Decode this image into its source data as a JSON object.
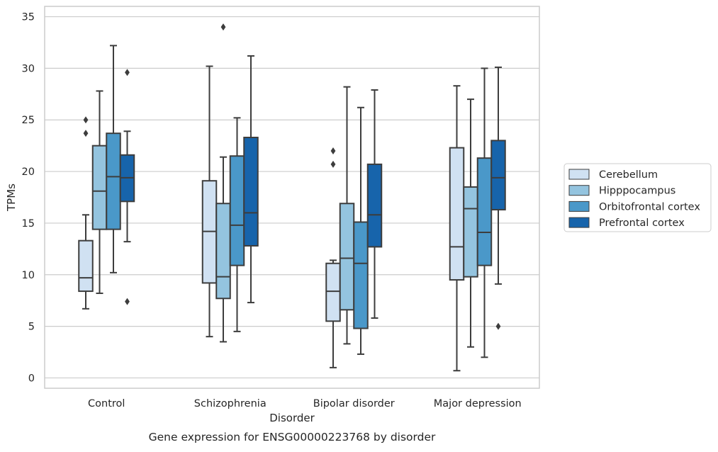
{
  "chart_data": {
    "type": "box",
    "caption": "Gene expression for ENSG00000223768 by disorder",
    "xlabel": "Disorder",
    "ylabel": "TPMs",
    "ylim": [
      -1,
      36
    ],
    "yticks": [
      0,
      5,
      10,
      15,
      20,
      25,
      30,
      35
    ],
    "grid": "horizontal",
    "legend_position": "right",
    "categories": [
      "Control",
      "Schizophrenia",
      "Bipolar disorder",
      "Major depression"
    ],
    "series": [
      {
        "name": "Cerebellum",
        "color": "#d0e1f2",
        "boxes": [
          {
            "whisker_low": 6.7,
            "q1": 8.4,
            "median": 9.7,
            "q3": 13.3,
            "whisker_high": 15.8,
            "outliers": [
              23.7,
              25.0
            ]
          },
          {
            "whisker_low": 4.0,
            "q1": 9.2,
            "median": 14.2,
            "q3": 19.1,
            "whisker_high": 30.2,
            "outliers": []
          },
          {
            "whisker_low": 1.0,
            "q1": 5.5,
            "median": 8.4,
            "q3": 11.1,
            "whisker_high": 11.4,
            "outliers": [
              20.7,
              22.0
            ]
          },
          {
            "whisker_low": 0.7,
            "q1": 9.5,
            "median": 12.7,
            "q3": 22.3,
            "whisker_high": 28.3,
            "outliers": []
          }
        ]
      },
      {
        "name": "Hipppocampus",
        "color": "#94c4df",
        "boxes": [
          {
            "whisker_low": 8.2,
            "q1": 14.4,
            "median": 18.1,
            "q3": 22.5,
            "whisker_high": 27.8,
            "outliers": []
          },
          {
            "whisker_low": 3.5,
            "q1": 7.7,
            "median": 9.8,
            "q3": 16.9,
            "whisker_high": 21.4,
            "outliers": [
              34.0
            ]
          },
          {
            "whisker_low": 3.3,
            "q1": 6.6,
            "median": 11.6,
            "q3": 16.9,
            "whisker_high": 28.2,
            "outliers": []
          },
          {
            "whisker_low": 3.0,
            "q1": 9.8,
            "median": 16.4,
            "q3": 18.5,
            "whisker_high": 27.0,
            "outliers": []
          }
        ]
      },
      {
        "name": "Orbitofrontal cortex",
        "color": "#4a98c9",
        "boxes": [
          {
            "whisker_low": 10.2,
            "q1": 14.4,
            "median": 19.5,
            "q3": 23.7,
            "whisker_high": 32.2,
            "outliers": []
          },
          {
            "whisker_low": 4.5,
            "q1": 10.9,
            "median": 14.8,
            "q3": 21.5,
            "whisker_high": 25.2,
            "outliers": []
          },
          {
            "whisker_low": 2.3,
            "q1": 4.8,
            "median": 11.1,
            "q3": 15.1,
            "whisker_high": 26.2,
            "outliers": []
          },
          {
            "whisker_low": 2.0,
            "q1": 10.9,
            "median": 14.1,
            "q3": 21.3,
            "whisker_high": 30.0,
            "outliers": []
          }
        ]
      },
      {
        "name": "Prefrontal cortex",
        "color": "#1764ab",
        "boxes": [
          {
            "whisker_low": 13.2,
            "q1": 17.1,
            "median": 19.4,
            "q3": 21.6,
            "whisker_high": 23.9,
            "outliers": [
              7.4,
              29.6
            ]
          },
          {
            "whisker_low": 7.3,
            "q1": 12.8,
            "median": 16.0,
            "q3": 23.3,
            "whisker_high": 31.2,
            "outliers": []
          },
          {
            "whisker_low": 5.8,
            "q1": 12.7,
            "median": 15.8,
            "q3": 20.7,
            "whisker_high": 27.9,
            "outliers": []
          },
          {
            "whisker_low": 9.1,
            "q1": 16.3,
            "median": 19.4,
            "q3": 23.0,
            "whisker_high": 30.1,
            "outliers": [
              5.0
            ]
          }
        ]
      }
    ]
  }
}
